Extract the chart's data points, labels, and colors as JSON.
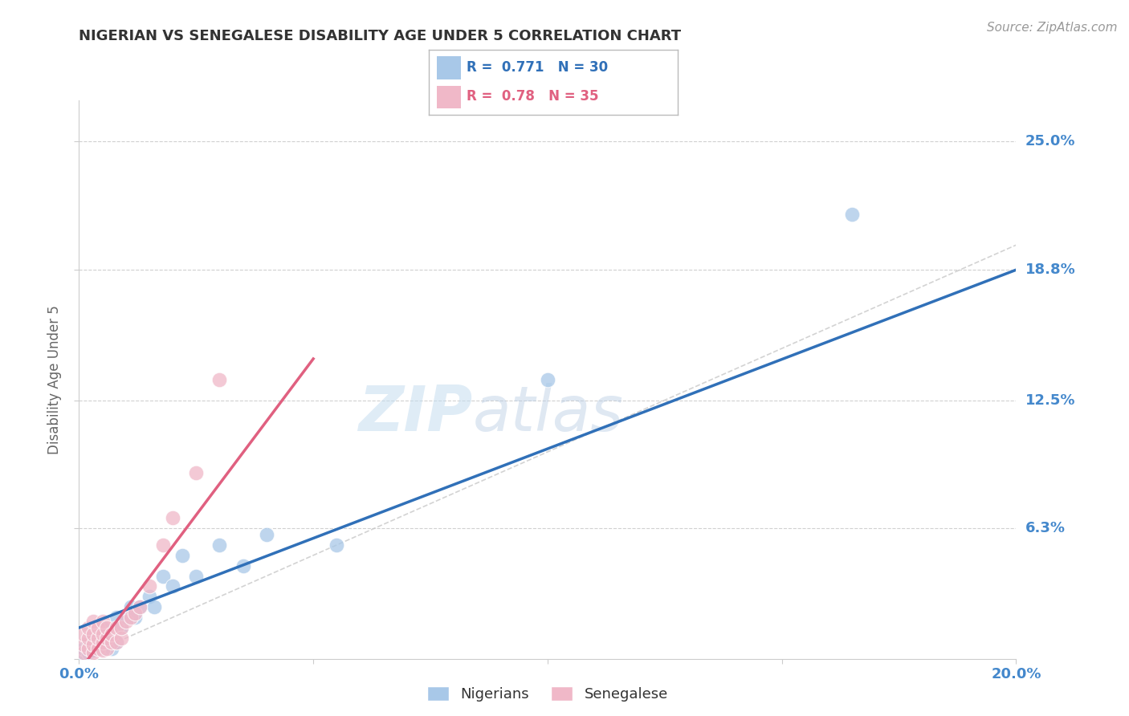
{
  "title": "NIGERIAN VS SENEGALESE DISABILITY AGE UNDER 5 CORRELATION CHART",
  "source": "Source: ZipAtlas.com",
  "ylabel": "Disability Age Under 5",
  "xmin": 0.0,
  "xmax": 0.2,
  "ymin": 0.0,
  "ymax": 0.27,
  "yticks": [
    0.0,
    0.063,
    0.125,
    0.188,
    0.25
  ],
  "ytick_labels": [
    "",
    "6.3%",
    "12.5%",
    "18.8%",
    "25.0%"
  ],
  "xticks": [
    0.0,
    0.05,
    0.1,
    0.15,
    0.2
  ],
  "xtick_labels": [
    "0.0%",
    "",
    "",
    "",
    "20.0%"
  ],
  "nigerian_R": 0.771,
  "nigerian_N": 30,
  "senegalese_R": 0.78,
  "senegalese_N": 35,
  "nigerian_color": "#a8c8e8",
  "senegalese_color": "#f0b8c8",
  "nigerian_line_color": "#3070b8",
  "senegalese_line_color": "#e06080",
  "reference_line_color": "#c8c8c8",
  "grid_color": "#d0d0d0",
  "title_color": "#333333",
  "label_color": "#4488cc",
  "nigerian_scatter_x": [
    0.001,
    0.001,
    0.002,
    0.002,
    0.003,
    0.003,
    0.004,
    0.005,
    0.005,
    0.006,
    0.007,
    0.008,
    0.008,
    0.009,
    0.01,
    0.011,
    0.012,
    0.013,
    0.015,
    0.016,
    0.018,
    0.02,
    0.022,
    0.025,
    0.03,
    0.035,
    0.04,
    0.055,
    0.1,
    0.165
  ],
  "nigerian_scatter_y": [
    0.002,
    0.005,
    0.003,
    0.008,
    0.004,
    0.01,
    0.005,
    0.005,
    0.015,
    0.01,
    0.005,
    0.008,
    0.02,
    0.015,
    0.02,
    0.025,
    0.02,
    0.025,
    0.03,
    0.025,
    0.04,
    0.035,
    0.05,
    0.04,
    0.055,
    0.045,
    0.06,
    0.055,
    0.135,
    0.215
  ],
  "senegalese_scatter_x": [
    0.001,
    0.001,
    0.001,
    0.002,
    0.002,
    0.002,
    0.003,
    0.003,
    0.003,
    0.003,
    0.004,
    0.004,
    0.004,
    0.005,
    0.005,
    0.005,
    0.005,
    0.006,
    0.006,
    0.006,
    0.007,
    0.007,
    0.008,
    0.008,
    0.009,
    0.009,
    0.01,
    0.011,
    0.012,
    0.013,
    0.015,
    0.018,
    0.02,
    0.025,
    0.03
  ],
  "senegalese_scatter_y": [
    0.003,
    0.007,
    0.012,
    0.005,
    0.01,
    0.015,
    0.003,
    0.007,
    0.012,
    0.018,
    0.005,
    0.01,
    0.015,
    0.004,
    0.008,
    0.012,
    0.018,
    0.005,
    0.01,
    0.015,
    0.008,
    0.012,
    0.008,
    0.015,
    0.01,
    0.015,
    0.018,
    0.02,
    0.022,
    0.025,
    0.035,
    0.055,
    0.068,
    0.09,
    0.135
  ],
  "nigerian_line_x": [
    0.0,
    0.2
  ],
  "nigerian_line_y": [
    0.015,
    0.188
  ],
  "senegalese_line_x": [
    0.002,
    0.05
  ],
  "senegalese_line_y": [
    0.0,
    0.145
  ],
  "ref_line_x": [
    0.0,
    0.2
  ],
  "ref_line_y": [
    0.0,
    0.2
  ],
  "watermark_zip": "ZIP",
  "watermark_atlas": "atlas",
  "background_color": "#ffffff"
}
